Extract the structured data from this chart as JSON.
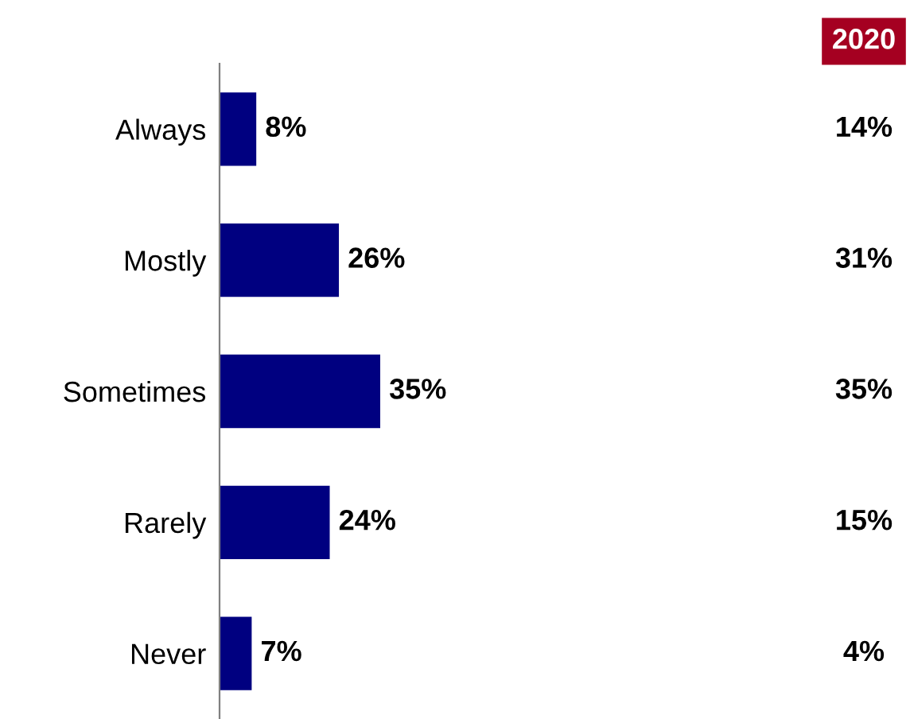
{
  "chart_data": {
    "type": "bar",
    "orientation": "horizontal",
    "categories": [
      "Always",
      "Mostly",
      "Sometimes",
      "Rarely",
      "Never"
    ],
    "values": [
      8,
      26,
      35,
      24,
      7
    ],
    "color": "#000080",
    "value_labels": [
      "8%",
      "26%",
      "35%",
      "24%",
      "7%"
    ],
    "annotations": [
      "2020",
      "14%",
      "31%",
      "35%",
      "15%",
      "4%"
    ],
    "grid": false,
    "legend": false
  }
}
